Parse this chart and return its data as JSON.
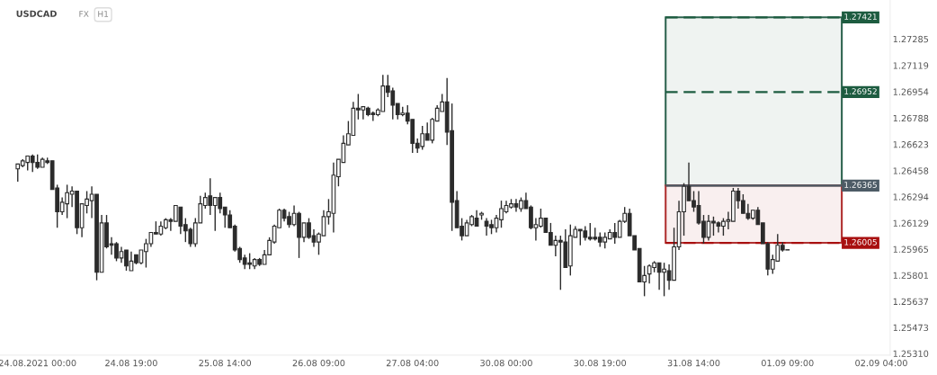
{
  "chart_data": {
    "type": "candlestick",
    "title": "USDCAD",
    "annotations": [
      "FX",
      "H1"
    ],
    "color": "#2b2b2b",
    "categories": [
      null,
      null,
      null,
      null,
      "24.08.2021 00:00",
      null,
      null,
      null,
      null,
      null,
      null,
      null,
      null,
      null,
      null,
      null,
      null,
      null,
      null,
      null,
      null,
      null,
      null,
      "24.08 19:00",
      null,
      null,
      null,
      null,
      null,
      null,
      null,
      null,
      null,
      null,
      null,
      null,
      null,
      null,
      null,
      null,
      null,
      null,
      "25.08 14:00",
      null,
      null,
      null,
      null,
      null,
      null,
      null,
      null,
      null,
      null,
      null,
      null,
      null,
      null,
      null,
      null,
      null,
      null,
      "26.08 09:00",
      null,
      null,
      null,
      null,
      null,
      null,
      null,
      null,
      null,
      null,
      null,
      null,
      null,
      null,
      null,
      null,
      null,
      null,
      "27.08 04:00",
      null,
      null,
      null,
      null,
      null,
      null,
      null,
      null,
      null,
      null,
      null,
      null,
      null,
      null,
      null,
      null,
      null,
      null,
      "30.08 00:00",
      null,
      null,
      null,
      null,
      null,
      null,
      null,
      null,
      null,
      null,
      null,
      null,
      null,
      null,
      null,
      null,
      null,
      null,
      "30.08 19:00",
      null,
      null,
      null,
      null,
      null,
      null,
      null,
      null,
      null,
      null,
      null,
      null,
      null,
      null,
      null,
      null,
      null,
      null,
      "31.08 14:00",
      null,
      null,
      null,
      null,
      null,
      null,
      null,
      null,
      null,
      null,
      null,
      null,
      null,
      null,
      null,
      null,
      null,
      null,
      "01.09 09:00",
      null,
      null,
      null,
      null,
      null,
      null,
      null,
      null,
      null,
      null,
      null,
      null,
      null,
      null,
      null,
      null,
      null,
      null,
      "02.09 04:00",
      null
    ],
    "ohlc": [
      [
        1.2647,
        1.265,
        1.2639,
        1.265
      ],
      [
        1.2649,
        1.2653,
        1.2648,
        1.2652
      ],
      [
        1.2651,
        1.2655,
        1.2646,
        1.2655
      ],
      [
        1.2655,
        1.2656,
        1.2645,
        1.2651
      ],
      [
        1.2651,
        1.2656,
        1.2647,
        1.2648
      ],
      [
        1.2648,
        1.2654,
        1.2648,
        1.2653
      ],
      [
        1.2652,
        1.2654,
        1.265,
        1.2651
      ],
      [
        1.2652,
        1.2652,
        1.2634,
        1.2634
      ],
      [
        1.2635,
        1.2637,
        1.261,
        1.262
      ],
      [
        1.262,
        1.2629,
        1.2618,
        1.2626
      ],
      [
        1.2625,
        1.2637,
        1.2616,
        1.2632
      ],
      [
        1.2631,
        1.2636,
        1.2623,
        1.2633
      ],
      [
        1.2633,
        1.2633,
        1.2606,
        1.261
      ],
      [
        1.261,
        1.2625,
        1.2604,
        1.2625
      ],
      [
        1.2624,
        1.2633,
        1.2619,
        1.2628
      ],
      [
        1.2627,
        1.2636,
        1.2616,
        1.2631
      ],
      [
        1.2631,
        1.2631,
        1.2577,
        1.2582
      ],
      [
        1.2582,
        1.2618,
        1.2582,
        1.2613
      ],
      [
        1.2613,
        1.2618,
        1.2597,
        1.2598
      ],
      [
        1.26,
        1.2604,
        1.2593,
        1.2599
      ],
      [
        1.26,
        1.2601,
        1.2589,
        1.2591
      ],
      [
        1.2591,
        1.2598,
        1.2588,
        1.2595
      ],
      [
        1.2596,
        1.2596,
        1.2583,
        1.2586
      ],
      [
        1.2583,
        1.2595,
        1.2583,
        1.2589
      ],
      [
        1.2593,
        1.2593,
        1.2587,
        1.2588
      ],
      [
        1.2588,
        1.2596,
        1.2587,
        1.2596
      ],
      [
        1.2595,
        1.2603,
        1.2585,
        1.26
      ],
      [
        1.26,
        1.2607,
        1.2598,
        1.2607
      ],
      [
        1.2607,
        1.2614,
        1.2606,
        1.2606
      ],
      [
        1.2606,
        1.2614,
        1.2605,
        1.2611
      ],
      [
        1.261,
        1.2616,
        1.2609,
        1.2615
      ],
      [
        1.2615,
        1.2616,
        1.2608,
        1.2614
      ],
      [
        1.2614,
        1.2624,
        1.2614,
        1.2624
      ],
      [
        1.2623,
        1.2623,
        1.2606,
        1.2611
      ],
      [
        1.2612,
        1.2616,
        1.2601,
        1.2608
      ],
      [
        1.2609,
        1.261,
        1.2598,
        1.26
      ],
      [
        1.26,
        1.2616,
        1.2598,
        1.2613
      ],
      [
        1.2613,
        1.263,
        1.2613,
        1.2625
      ],
      [
        1.2624,
        1.2632,
        1.2622,
        1.2629
      ],
      [
        1.263,
        1.2641,
        1.2618,
        1.2624
      ],
      [
        1.2624,
        1.2629,
        1.2608,
        1.2629
      ],
      [
        1.2629,
        1.2632,
        1.2619,
        1.2622
      ],
      [
        1.2623,
        1.2623,
        1.261,
        1.2618
      ],
      [
        1.2618,
        1.2621,
        1.261,
        1.261
      ],
      [
        1.2611,
        1.2612,
        1.2595,
        1.2596
      ],
      [
        1.2597,
        1.2598,
        1.2588,
        1.259
      ],
      [
        1.2591,
        1.2593,
        1.2584,
        1.2587
      ],
      [
        1.2588,
        1.2594,
        1.2584,
        1.2587
      ],
      [
        1.2586,
        1.2591,
        1.2584,
        1.259
      ],
      [
        1.259,
        1.2591,
        1.2586,
        1.2587
      ],
      [
        1.2587,
        1.2596,
        1.2587,
        1.2593
      ],
      [
        1.2593,
        1.2604,
        1.2593,
        1.2602
      ],
      [
        1.2601,
        1.2612,
        1.26,
        1.2611
      ],
      [
        1.261,
        1.2622,
        1.261,
        1.2621
      ],
      [
        1.2621,
        1.2622,
        1.2614,
        1.2616
      ],
      [
        1.2617,
        1.262,
        1.261,
        1.2612
      ],
      [
        1.2612,
        1.2624,
        1.2611,
        1.2619
      ],
      [
        1.2619,
        1.262,
        1.2591,
        1.2604
      ],
      [
        1.2604,
        1.2613,
        1.2601,
        1.2613
      ],
      [
        1.2613,
        1.2616,
        1.2603,
        1.2604
      ],
      [
        1.2605,
        1.2609,
        1.2598,
        1.2601
      ],
      [
        1.2601,
        1.2607,
        1.2593,
        1.2606
      ],
      [
        1.2605,
        1.2621,
        1.2605,
        1.2617
      ],
      [
        1.2617,
        1.2628,
        1.2612,
        1.262
      ],
      [
        1.2619,
        1.2651,
        1.2607,
        1.2643
      ],
      [
        1.2642,
        1.2653,
        1.2636,
        1.2653
      ],
      [
        1.2651,
        1.2668,
        1.2651,
        1.2663
      ],
      [
        1.2662,
        1.2677,
        1.2662,
        1.2669
      ],
      [
        1.2668,
        1.2689,
        1.2668,
        1.2685
      ],
      [
        1.2685,
        1.2694,
        1.2678,
        1.2684
      ],
      [
        1.2684,
        1.2686,
        1.2678,
        1.2686
      ],
      [
        1.2685,
        1.2686,
        1.268,
        1.2681
      ],
      [
        1.2682,
        1.2683,
        1.2677,
        1.2681
      ],
      [
        1.2681,
        1.2685,
        1.268,
        1.2684
      ],
      [
        1.2683,
        1.2706,
        1.2683,
        1.2699
      ],
      [
        1.2699,
        1.2706,
        1.2692,
        1.2695
      ],
      [
        1.2696,
        1.2698,
        1.2678,
        1.2687
      ],
      [
        1.2688,
        1.2688,
        1.2678,
        1.2681
      ],
      [
        1.2681,
        1.2686,
        1.268,
        1.2682
      ],
      [
        1.2682,
        1.2687,
        1.2675,
        1.2677
      ],
      [
        1.2678,
        1.2678,
        1.2657,
        1.2663
      ],
      [
        1.2663,
        1.2666,
        1.2657,
        1.266
      ],
      [
        1.2661,
        1.2674,
        1.2659,
        1.2669
      ],
      [
        1.2669,
        1.2676,
        1.2665,
        1.2665
      ],
      [
        1.2665,
        1.2679,
        1.2663,
        1.2678
      ],
      [
        1.2677,
        1.2687,
        1.2677,
        1.2685
      ],
      [
        1.2683,
        1.2694,
        1.2683,
        1.2689
      ],
      [
        1.2689,
        1.2704,
        1.2662,
        1.267
      ],
      [
        1.2671,
        1.2688,
        1.2608,
        1.2626
      ],
      [
        1.2627,
        1.2633,
        1.261,
        1.261
      ],
      [
        1.2611,
        1.2616,
        1.2602,
        1.2605
      ],
      [
        1.2605,
        1.2615,
        1.2605,
        1.2613
      ],
      [
        1.2612,
        1.2618,
        1.2611,
        1.2617
      ],
      [
        1.2616,
        1.2621,
        1.2611,
        1.2611
      ],
      [
        1.2618,
        1.262,
        1.2615,
        1.2619
      ],
      [
        1.2614,
        1.2616,
        1.2605,
        1.2611
      ],
      [
        1.2612,
        1.2615,
        1.2606,
        1.261
      ],
      [
        1.261,
        1.2618,
        1.2607,
        1.2616
      ],
      [
        1.2615,
        1.2627,
        1.261,
        1.2622
      ],
      [
        1.262,
        1.2627,
        1.2619,
        1.2624
      ],
      [
        1.2623,
        1.2628,
        1.2622,
        1.2625
      ],
      [
        1.2625,
        1.2628,
        1.262,
        1.2623
      ],
      [
        1.2622,
        1.2629,
        1.262,
        1.2627
      ],
      [
        1.2627,
        1.2632,
        1.2622,
        1.2622
      ],
      [
        1.2623,
        1.2624,
        1.2609,
        1.261
      ],
      [
        1.261,
        1.2616,
        1.2602,
        1.2612
      ],
      [
        1.2611,
        1.2622,
        1.261,
        1.2616
      ],
      [
        1.2616,
        1.2616,
        1.2607,
        1.2607
      ],
      [
        1.2607,
        1.2613,
        1.2599,
        1.2599
      ],
      [
        1.2599,
        1.2605,
        1.2592,
        1.2602
      ],
      [
        1.2602,
        1.2605,
        1.2571,
        1.2601
      ],
      [
        1.2601,
        1.2609,
        1.2585,
        1.2585
      ],
      [
        1.2586,
        1.2612,
        1.258,
        1.2605
      ],
      [
        1.2604,
        1.2611,
        1.2604,
        1.2609
      ],
      [
        1.2609,
        1.2609,
        1.2599,
        1.2608
      ],
      [
        1.2608,
        1.2611,
        1.2602,
        1.2604
      ],
      [
        1.2604,
        1.2613,
        1.2602,
        1.2603
      ],
      [
        1.2604,
        1.261,
        1.2602,
        1.2603
      ],
      [
        1.2604,
        1.2607,
        1.2598,
        1.2601
      ],
      [
        1.2601,
        1.2607,
        1.2597,
        1.2604
      ],
      [
        1.2603,
        1.2609,
        1.2603,
        1.2607
      ],
      [
        1.2607,
        1.2613,
        1.26,
        1.2604
      ],
      [
        1.2604,
        1.2615,
        1.2604,
        1.2614
      ],
      [
        1.2614,
        1.2623,
        1.2613,
        1.2619
      ],
      [
        1.2619,
        1.2622,
        1.2605,
        1.2605
      ],
      [
        1.2605,
        1.2605,
        1.2596,
        1.2596
      ],
      [
        1.2597,
        1.2597,
        1.2576,
        1.2576
      ],
      [
        1.2576,
        1.2586,
        1.2567,
        1.258
      ],
      [
        1.2581,
        1.2587,
        1.2575,
        1.2586
      ],
      [
        1.2585,
        1.2589,
        1.2582,
        1.2588
      ],
      [
        1.2588,
        1.2588,
        1.2571,
        1.2582
      ],
      [
        1.2582,
        1.2588,
        1.2567,
        1.2584
      ],
      [
        1.2583,
        1.2587,
        1.2571,
        1.2577
      ],
      [
        1.2577,
        1.261,
        1.2577,
        1.2598
      ],
      [
        1.2598,
        1.2627,
        1.2596,
        1.262
      ],
      [
        1.262,
        1.2638,
        1.2605,
        1.2636
      ],
      [
        1.2636,
        1.2651,
        1.2627,
        1.2627
      ],
      [
        1.2627,
        1.2633,
        1.262,
        1.2623
      ],
      [
        1.2624,
        1.2633,
        1.2612,
        1.2613
      ],
      [
        1.2614,
        1.2618,
        1.26,
        1.2604
      ],
      [
        1.2604,
        1.2618,
        1.2602,
        1.2614
      ],
      [
        1.2614,
        1.2617,
        1.2605,
        1.2613
      ],
      [
        1.2613,
        1.2614,
        1.2607,
        1.2611
      ],
      [
        1.2611,
        1.2616,
        1.2605,
        1.2614
      ],
      [
        1.2614,
        1.262,
        1.2609,
        1.2615
      ],
      [
        1.2614,
        1.2635,
        1.2614,
        1.2633
      ],
      [
        1.2633,
        1.2635,
        1.2622,
        1.2627
      ],
      [
        1.2627,
        1.2631,
        1.2619,
        1.2619
      ],
      [
        1.2619,
        1.2625,
        1.2615,
        1.2616
      ],
      [
        1.2616,
        1.2621,
        1.2615,
        1.2621
      ],
      [
        1.2621,
        1.2623,
        1.2612,
        1.2612
      ],
      [
        1.2613,
        1.2613,
        1.26,
        1.26
      ],
      [
        1.26,
        1.2601,
        1.258,
        1.2584
      ],
      [
        1.2584,
        1.2593,
        1.2581,
        1.259
      ],
      [
        1.2589,
        1.2606,
        1.2589,
        1.2599
      ],
      [
        1.2599,
        1.2601,
        1.2595,
        1.2596
      ],
      [
        1.2596,
        1.2596,
        1.2596,
        1.2596
      ],
      null,
      null,
      null,
      null,
      null,
      null,
      null,
      null,
      null,
      null,
      null,
      null,
      null,
      null,
      null,
      null,
      null,
      null,
      null,
      null
    ],
    "ylim": [
      1.253,
      1.2753
    ],
    "yticks": [
      {
        "value": 1.2531,
        "label": "1.25310"
      },
      1.25473,
      1.25637,
      1.25801,
      1.25965,
      1.26129,
      1.26294,
      1.26458,
      1.26623,
      1.26788,
      1.26954,
      1.27119,
      1.27285
    ],
    "bands": [
      {
        "axis": "y",
        "from": 1.26365,
        "to": 1.27421,
        "color": "#2e6450"
      },
      {
        "axis": "y",
        "from": 1.26005,
        "to": 1.26365,
        "color": "#b03030"
      }
    ],
    "ref_lines": [
      {
        "axis": "y",
        "value": 1.27421,
        "label": "1.27421",
        "color": "#1d5c40",
        "line_style": "dashed"
      },
      {
        "axis": "y",
        "value": 1.26952,
        "label": "1.26952",
        "color": "#1d5c40",
        "line_style": "dashed"
      },
      {
        "axis": "y",
        "value": 1.26365,
        "label": "1.26365",
        "color": "#4d5b66",
        "line_style": "solid"
      },
      {
        "axis": "y",
        "value": 1.26005,
        "label": "1.26005",
        "color": "#a80f0f",
        "line_style": "dashed"
      }
    ],
    "grid": false
  }
}
